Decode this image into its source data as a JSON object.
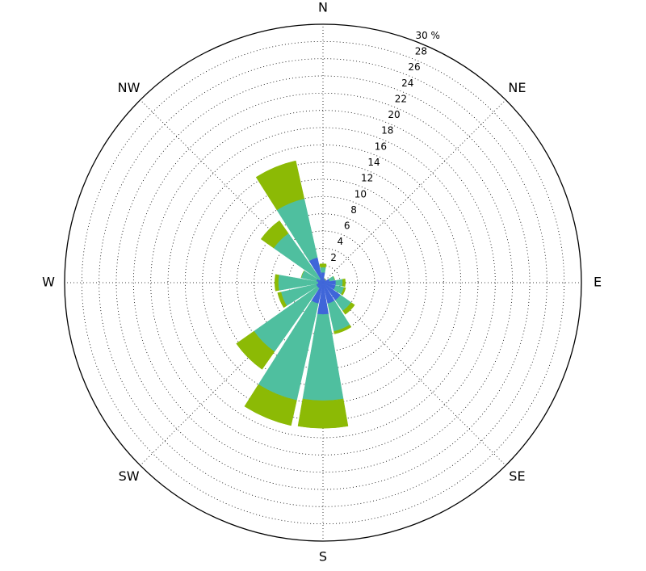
{
  "chart_data": {
    "type": "windrose",
    "categories": [
      "N",
      null,
      "NE",
      null,
      "E",
      null,
      "SE",
      null,
      "S",
      null,
      "SW",
      null,
      "W",
      null,
      "NW",
      null
    ],
    "series": [
      {
        "color": "#3f66d9",
        "values": [
          1.2,
          0.5,
          0.4,
          0.8,
          1.5,
          1.5,
          2.5,
          2.5,
          3.7,
          2.5,
          0.8,
          0.8,
          0.6,
          0.8,
          0.5,
          3
        ]
      },
      {
        "color": "#4fbf9f",
        "values": [
          0.6,
          0,
          0,
          0.6,
          0.8,
          1,
          1.5,
          3.3,
          10,
          11.5,
          9,
          4.2,
          4.6,
          1.8,
          6.5,
          7
        ]
      },
      {
        "color": "#8cba05",
        "values": [
          0.4,
          0,
          0,
          0,
          0.3,
          0.2,
          0.5,
          0.3,
          3.2,
          3,
          2.5,
          0.4,
          0.4,
          0,
          1.8,
          4.5
        ]
      }
    ],
    "ylim": [
      0,
      30
    ],
    "yticks": [
      2,
      4,
      6,
      8,
      10,
      12,
      14,
      16,
      18,
      20,
      22,
      24,
      26,
      28,
      {
        "value": 30,
        "label": "30 %"
      }
    ],
    "grid": true
  }
}
